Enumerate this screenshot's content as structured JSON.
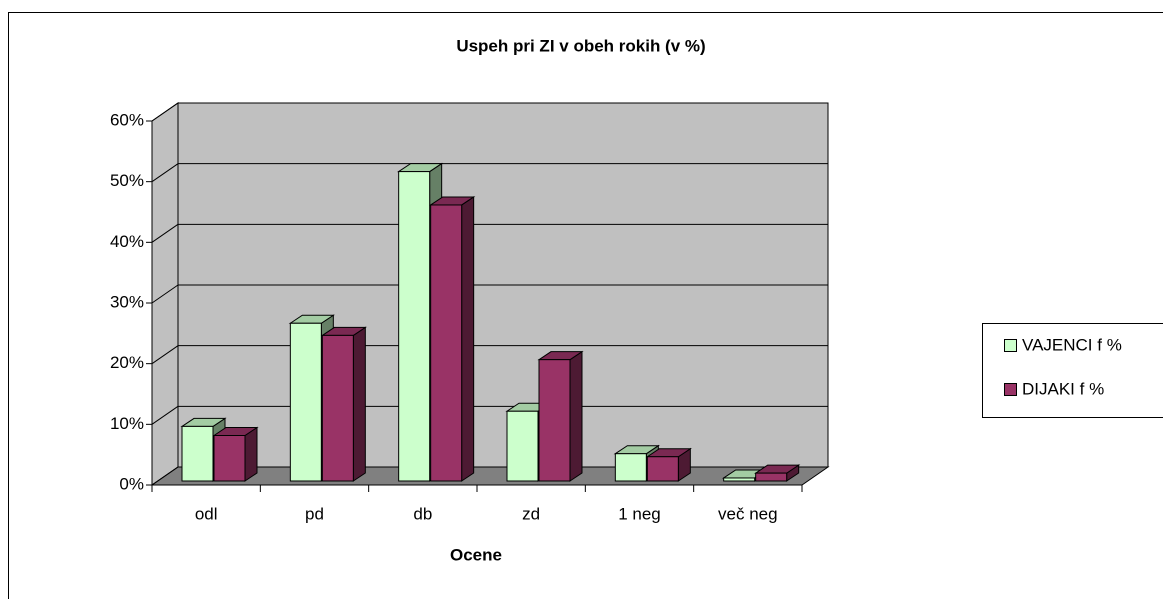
{
  "chart_data": {
    "type": "bar3d",
    "title": "Uspeh pri ZI v obeh rokih (v %)",
    "x_label": "Ocene",
    "categories": [
      "odl",
      "pd",
      "db",
      "zd",
      "1 neg",
      "več neg"
    ],
    "series": [
      {
        "name": "VAJENCI f %",
        "color": "#ccffcc",
        "values": [
          9,
          26,
          51,
          11.5,
          4.5,
          0.5
        ]
      },
      {
        "name": "DIJAKI f %",
        "color": "#993366",
        "values": [
          7.5,
          24,
          45.5,
          20,
          4,
          1.3
        ]
      }
    ],
    "ylim": [
      0,
      60
    ],
    "yticks": [
      {
        "value": 0,
        "label": "0%"
      },
      {
        "value": 10,
        "label": "10%"
      },
      {
        "value": 20,
        "label": "20%"
      },
      {
        "value": 30,
        "label": "30%"
      },
      {
        "value": 40,
        "label": "40%"
      },
      {
        "value": 50,
        "label": "50%"
      },
      {
        "value": 60,
        "label": "60%"
      }
    ],
    "grid": true,
    "legend": "right"
  }
}
